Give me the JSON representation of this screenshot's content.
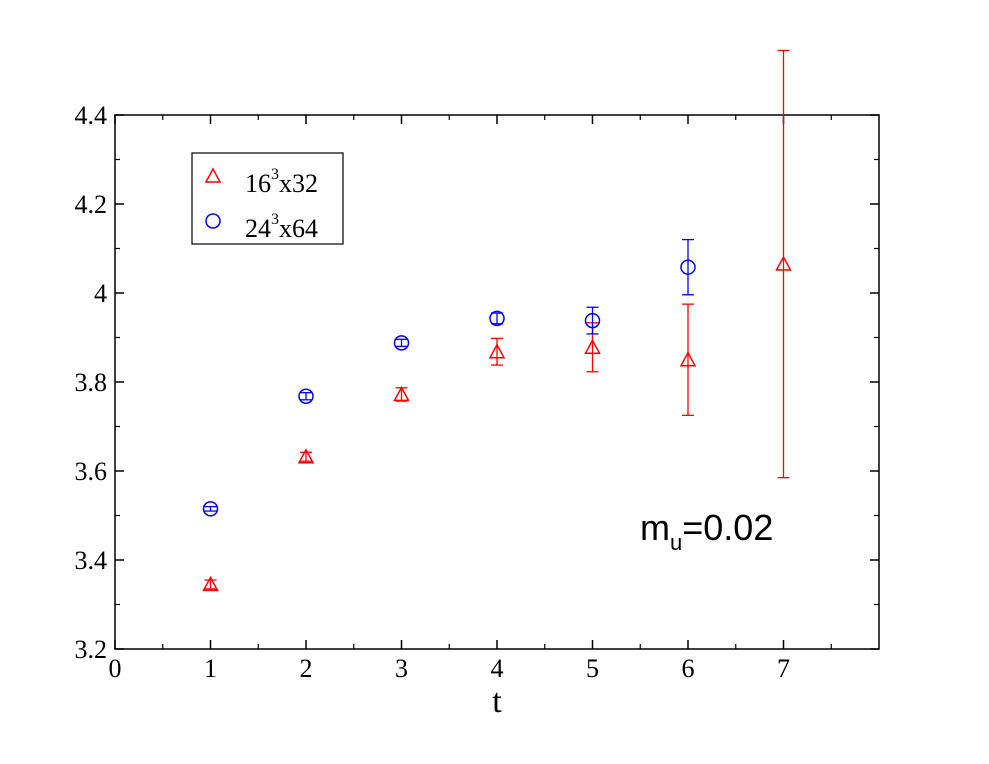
{
  "chart_data": {
    "type": "scatter",
    "title": "",
    "xlabel": "t",
    "ylabel": "",
    "xlim": [
      0,
      8
    ],
    "ylim": [
      3.2,
      4.4
    ],
    "x_ticks": [
      "0",
      "1",
      "2",
      "3",
      "4",
      "5",
      "6",
      "7"
    ],
    "y_ticks": [
      "3.2",
      "3.4",
      "3.6",
      "3.8",
      "4",
      "4.2",
      "4.4"
    ],
    "grid": false,
    "legend_position": "top-left",
    "series": [
      {
        "label_base": "16",
        "label_sup": "3",
        "label_rest": "x32",
        "marker": "triangle",
        "color": "#ff0000",
        "points": [
          {
            "x": 1,
            "y": 3.345,
            "err": 0.01
          },
          {
            "x": 2,
            "y": 3.632,
            "err": 0.01
          },
          {
            "x": 3,
            "y": 3.772,
            "err": 0.015
          },
          {
            "x": 4,
            "y": 3.868,
            "err": 0.03
          },
          {
            "x": 5,
            "y": 3.878,
            "err": 0.055
          },
          {
            "x": 6,
            "y": 3.85,
            "err": 0.125
          },
          {
            "x": 7,
            "y": 4.065,
            "err": 0.48
          }
        ]
      },
      {
        "label_base": "24",
        "label_sup": "3",
        "label_rest": "x64",
        "marker": "circle",
        "color": "#0000ff",
        "points": [
          {
            "x": 1,
            "y": 3.515,
            "err": 0.005
          },
          {
            "x": 2,
            "y": 3.768,
            "err": 0.008
          },
          {
            "x": 3,
            "y": 3.888,
            "err": 0.008
          },
          {
            "x": 4,
            "y": 3.943,
            "err": 0.012
          },
          {
            "x": 5,
            "y": 3.938,
            "err": 0.03
          },
          {
            "x": 6,
            "y": 4.058,
            "err": 0.062
          }
        ]
      }
    ],
    "annotation": {
      "main": "m",
      "sub": "u",
      "rest": "=0.02"
    }
  }
}
